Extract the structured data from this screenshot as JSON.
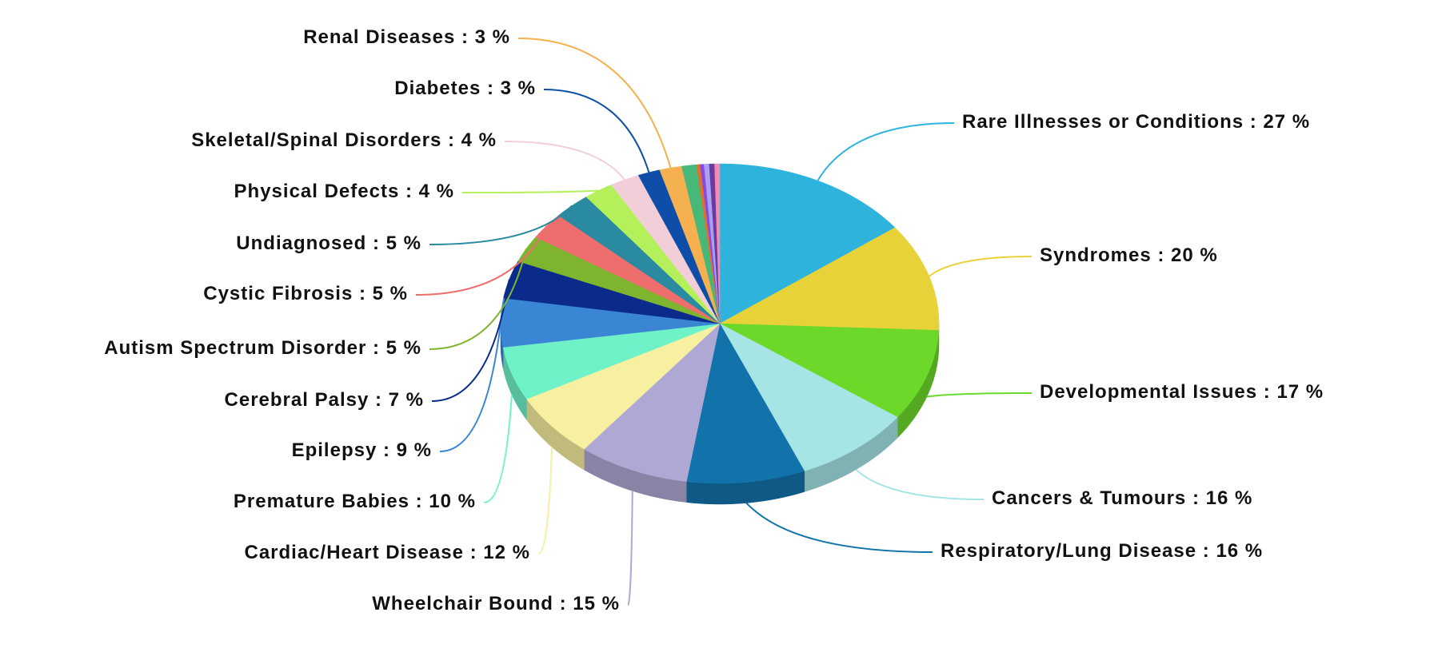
{
  "chart_data": {
    "type": "pie",
    "categories": [
      "Rare Illnesses or Conditions",
      "Syndromes",
      "Developmental Issues",
      "Cancers & Tumours",
      "Respiratory/Lung Disease",
      "Wheelchair Bound",
      "Cardiac/Heart Disease",
      "Premature Babies",
      "Epilepsy",
      "Cerebral Palsy",
      "Autism Spectrum Disorder",
      "Cystic Fibrosis",
      "Undiagnosed",
      "Physical Defects",
      "Skeletal/Spinal Disorders",
      "Diabetes",
      "Renal Diseases",
      null,
      null,
      null,
      null,
      null,
      null
    ],
    "values": [
      27,
      20,
      17,
      16,
      16,
      15,
      12,
      10,
      9,
      7,
      5,
      5,
      5,
      4,
      4,
      3,
      3,
      2,
      0.5,
      0.5,
      0.7,
      0.7,
      0.7
    ],
    "value_labels": [
      "27 %",
      "20 %",
      "17 %",
      "16 %",
      "16 %",
      "15 %",
      "12 %",
      "10 %",
      "9 %",
      "7 %",
      "5 %",
      "5 %",
      "5 %",
      "4 %",
      "4 %",
      "3 %",
      "3 %",
      null,
      null,
      null,
      null,
      null,
      null
    ],
    "label_separator": " : ",
    "colors": [
      "#2eb4dc",
      "#e8d23a",
      "#6cd92a",
      "#a6e4e6",
      "#1272aa",
      "#b0a8d4",
      "#f6f0a0",
      "#6ff2c8",
      "#3a86d4",
      "#0a2a8c",
      "#7fb52e",
      "#ee6e6e",
      "#2a8aa0",
      "#b4f05a",
      "#f2cfd8",
      "#0e4ea8",
      "#f5b050",
      "#48b878",
      "#e07030",
      "#8a4ae0",
      "#a8a0f0",
      "#6a3aa0",
      "#f08ab0"
    ]
  }
}
